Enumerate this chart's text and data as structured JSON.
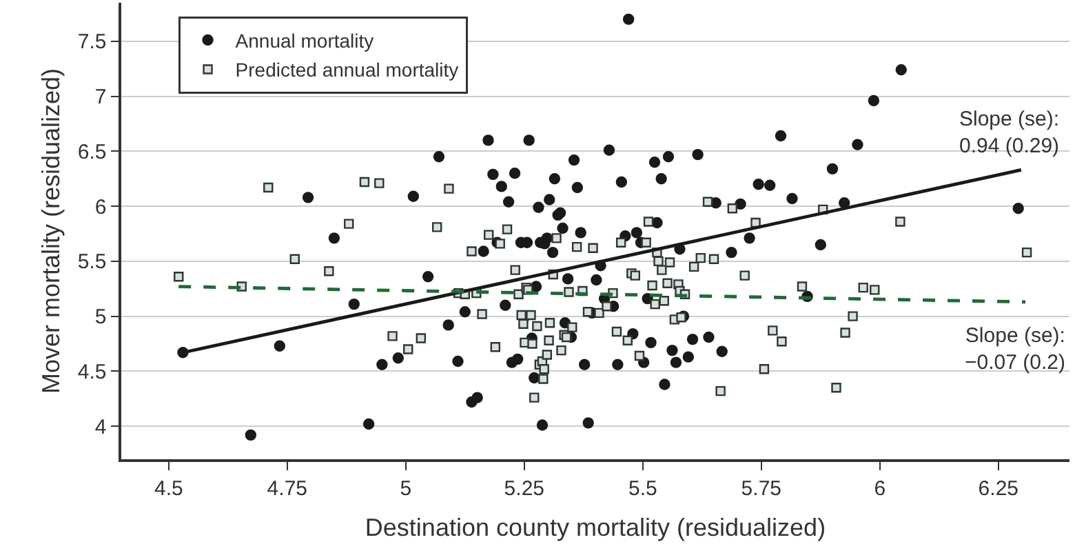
{
  "chart_data": {
    "type": "scatter",
    "xlabel": "Destination county mortality (residualized)",
    "ylabel": "Mover mortality (residualized)",
    "xlim": [
      4.4,
      6.4
    ],
    "xticks": [
      4.5,
      4.75,
      5,
      5.25,
      5.5,
      5.75,
      6,
      6.25
    ],
    "ylim": [
      3.7,
      7.85
    ],
    "yticks": [
      4,
      4.5,
      5,
      5.5,
      6,
      6.5,
      7,
      7.5
    ],
    "grid": "y",
    "legend": "top left",
    "series": [
      {
        "name": "Annual mortality",
        "marker": "circle",
        "color": "#1a1a1a",
        "x": [
          4.53,
          4.673,
          4.734,
          4.794,
          4.849,
          4.891,
          4.922,
          4.95,
          4.984,
          5.016,
          5.047,
          5.07,
          5.09,
          5.11,
          5.125,
          5.139,
          5.151,
          5.164,
          5.174,
          5.184,
          5.193,
          5.202,
          5.21,
          5.217,
          5.224,
          5.236,
          5.23,
          5.243,
          5.256,
          5.25,
          5.26,
          5.266,
          5.271,
          5.275,
          5.28,
          5.284,
          5.288,
          5.293,
          5.298,
          5.303,
          5.31,
          5.314,
          5.321,
          5.326,
          5.331,
          5.336,
          5.342,
          5.349,
          5.355,
          5.362,
          5.369,
          5.377,
          5.385,
          5.393,
          5.402,
          5.411,
          5.419,
          5.429,
          5.438,
          5.447,
          5.455,
          5.47,
          5.463,
          5.479,
          5.487,
          5.496,
          5.502,
          5.51,
          5.517,
          5.525,
          5.53,
          5.539,
          5.546,
          5.554,
          5.562,
          5.57,
          5.578,
          5.586,
          5.596,
          5.605,
          5.616,
          5.639,
          5.654,
          5.667,
          5.687,
          5.706,
          5.725,
          5.744,
          5.768,
          5.791,
          5.815,
          5.847,
          5.875,
          5.9,
          5.925,
          5.953,
          5.987,
          6.045,
          6.292
        ],
        "values": [
          4.67,
          3.92,
          4.73,
          6.08,
          5.71,
          5.11,
          4.02,
          4.56,
          4.62,
          6.09,
          5.36,
          6.45,
          4.92,
          4.59,
          5.04,
          4.22,
          4.26,
          5.59,
          6.6,
          6.29,
          5.67,
          6.18,
          5.1,
          6.04,
          4.58,
          4.61,
          6.3,
          5.67,
          5.67,
          4.99,
          6.6,
          4.8,
          4.44,
          5.27,
          5.99,
          5.67,
          4.01,
          5.66,
          5.71,
          6.06,
          5.58,
          6.25,
          5.92,
          5.94,
          5.8,
          4.94,
          5.34,
          4.81,
          6.42,
          6.17,
          5.76,
          4.56,
          4.03,
          5.03,
          5.33,
          5.46,
          5.16,
          6.51,
          5.09,
          4.56,
          6.22,
          7.7,
          5.73,
          4.84,
          5.76,
          5.67,
          4.58,
          5.16,
          4.76,
          6.4,
          5.85,
          6.25,
          4.38,
          6.45,
          4.69,
          4.58,
          5.61,
          5.0,
          4.63,
          4.79,
          6.47,
          4.81,
          6.03,
          4.68,
          5.58,
          6.02,
          5.71,
          6.2,
          6.19,
          6.64,
          6.07,
          5.18,
          5.65,
          6.34,
          6.03,
          6.56,
          6.96,
          7.24,
          5.98
        ]
      },
      {
        "name": "Predicted annual mortality",
        "marker": "square",
        "color": "#d3e3da",
        "x": [
          4.521,
          4.654,
          4.71,
          4.766,
          4.838,
          4.88,
          4.913,
          4.944,
          4.972,
          5.005,
          5.032,
          5.066,
          5.091,
          5.111,
          5.125,
          5.139,
          5.149,
          5.161,
          5.175,
          5.189,
          5.199,
          5.214,
          5.231,
          5.238,
          5.244,
          5.248,
          5.251,
          5.254,
          5.258,
          5.264,
          5.267,
          5.271,
          5.277,
          5.282,
          5.288,
          5.292,
          5.29,
          5.298,
          5.302,
          5.304,
          5.311,
          5.318,
          5.328,
          5.334,
          5.339,
          5.351,
          5.344,
          5.361,
          5.373,
          5.384,
          5.395,
          5.408,
          5.424,
          5.437,
          5.445,
          5.454,
          5.468,
          5.476,
          5.484,
          5.493,
          5.507,
          5.512,
          5.52,
          5.526,
          5.53,
          5.533,
          5.54,
          5.545,
          5.552,
          5.557,
          5.567,
          5.575,
          5.578,
          5.581,
          5.589,
          5.608,
          5.622,
          5.637,
          5.65,
          5.664,
          5.689,
          5.715,
          5.738,
          5.756,
          5.774,
          5.793,
          5.836,
          5.88,
          5.908,
          5.927,
          5.943,
          5.965,
          5.989,
          6.043,
          6.31
        ],
        "values": [
          5.36,
          5.27,
          6.17,
          5.52,
          5.41,
          5.84,
          6.22,
          6.21,
          4.82,
          4.7,
          4.8,
          5.81,
          6.16,
          5.21,
          5.2,
          5.59,
          5.21,
          5.02,
          5.74,
          4.72,
          5.66,
          5.79,
          5.42,
          5.2,
          5.01,
          4.93,
          4.76,
          5.26,
          5.24,
          5.01,
          4.75,
          4.26,
          4.91,
          4.56,
          4.59,
          4.52,
          4.43,
          4.65,
          4.78,
          4.94,
          5.38,
          5.71,
          4.69,
          4.83,
          4.81,
          4.9,
          5.22,
          5.63,
          5.23,
          5.04,
          5.62,
          5.03,
          5.09,
          5.21,
          4.86,
          5.67,
          4.78,
          5.39,
          5.37,
          4.64,
          5.67,
          5.86,
          5.28,
          5.11,
          5.58,
          5.5,
          5.42,
          5.14,
          5.3,
          5.49,
          4.97,
          5.29,
          5.23,
          4.99,
          5.2,
          5.45,
          5.53,
          6.04,
          5.52,
          4.32,
          5.98,
          5.37,
          5.85,
          4.52,
          4.87,
          4.77,
          5.27,
          5.97,
          4.35,
          4.85,
          5.0,
          5.26,
          5.24,
          5.86,
          5.58
        ]
      },
      {
        "type": "line",
        "line_style": "solid",
        "color": "#1a1a1a",
        "x": [
          4.53,
          6.298
        ],
        "values": [
          4.67,
          6.33
        ]
      },
      {
        "type": "line",
        "line_style": "dashed",
        "color": "#1d6b36",
        "x": [
          4.521,
          6.307
        ],
        "values": [
          5.27,
          5.13
        ]
      }
    ],
    "annotations": [
      {
        "text": "Slope (se):\n0.94 (0.29)",
        "x": 6.298,
        "y": 6.33
      },
      {
        "text": "Slope (se):\n−0.07 (0.2)",
        "x": 6.307,
        "y": 5.13
      }
    ]
  }
}
